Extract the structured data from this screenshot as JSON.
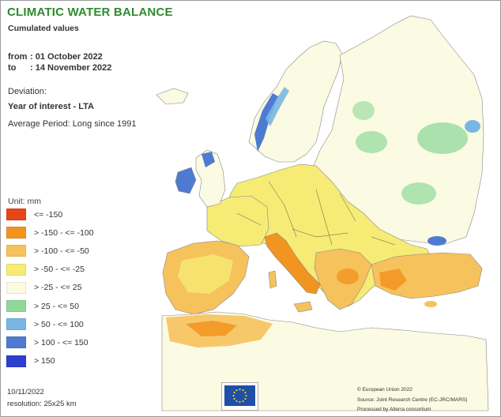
{
  "title": "CLIMATIC WATER BALANCE",
  "subtitle": "Cumulated values",
  "period": {
    "from_label": "from",
    "from_value": ": 01 October 2022",
    "to_label": "to",
    "to_value": ": 14 November 2022"
  },
  "deviation": {
    "label": "Deviation:",
    "year_line": "Year of interest - LTA",
    "average_line": "Average Period: Long since 1991"
  },
  "legend": {
    "title": "Unit: mm",
    "items": [
      {
        "label": "<= -150",
        "color": "#e8451b"
      },
      {
        "label": "> -150 - <= -100",
        "color": "#f29420"
      },
      {
        "label": "> -100 - <= -50",
        "color": "#f6c25c"
      },
      {
        "label": "> -50 - <= -25",
        "color": "#f6eb74"
      },
      {
        "label": "> -25 - <= 25",
        "color": "#fbfae2"
      },
      {
        "label": "> 25 - <= 50",
        "color": "#8fd89a"
      },
      {
        "label": "> 50 - <= 100",
        "color": "#79b6e3"
      },
      {
        "label": "> 100 - <= 150",
        "color": "#4e7bd1"
      },
      {
        "label": "> 150",
        "color": "#2d3fcf"
      }
    ]
  },
  "footer": {
    "date": "10/11/2022",
    "resolution": "resolution: 25x25 km",
    "credits": [
      "© European Union 2022",
      "Source: Joint Research Centre (EC-JRC/MARS)",
      "Processed by Alterra consortium"
    ]
  },
  "colors": {
    "title_green": "#2e8b2e",
    "sea": "#ffffff",
    "land_base": "#fbfae2",
    "border": "#555555",
    "eu_blue": "#1f4fa6",
    "eu_star": "#f2d21b"
  }
}
